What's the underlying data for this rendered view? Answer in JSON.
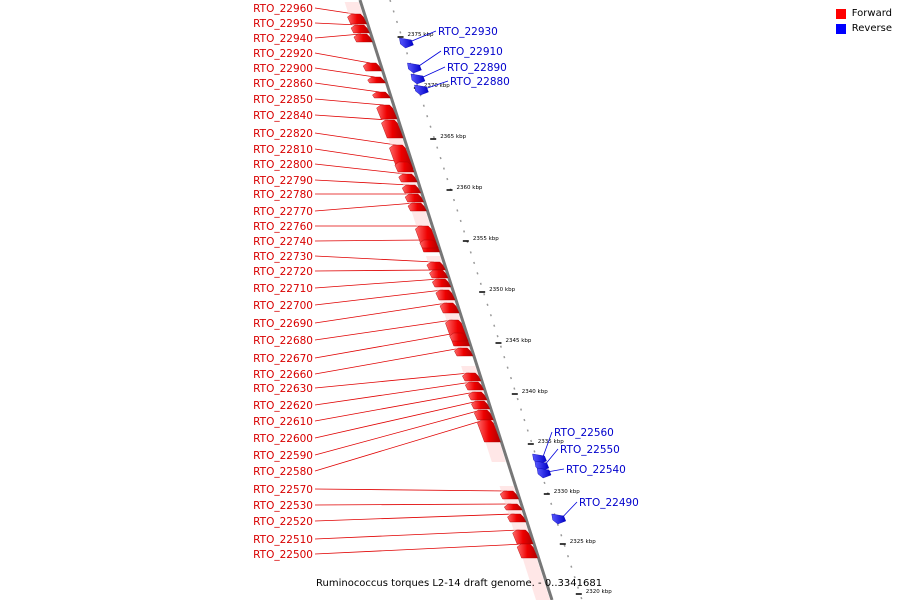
{
  "legend": {
    "forward": {
      "label": "Forward",
      "color": "#ff0000"
    },
    "reverse": {
      "label": "Reverse",
      "color": "#0000ff"
    }
  },
  "caption": "Ruminococcus torques L2-14 draft genome. - 0..3341681",
  "ruler_ticks": [
    "2375 kbp",
    "2370 kbp",
    "2365 kbp",
    "2360 kbp",
    "2355 kbp",
    "2350 kbp",
    "2345 kbp",
    "2340 kbp",
    "2335 kbp",
    "2330 kbp",
    "2325 kbp",
    "2320 kbp"
  ],
  "forward_genes": [
    "RTO_22960",
    "RTO_22950",
    "RTO_22940",
    "RTO_22920",
    "RTO_22900",
    "RTO_22860",
    "RTO_22850",
    "RTO_22840",
    "RTO_22820",
    "RTO_22810",
    "RTO_22800",
    "RTO_22790",
    "RTO_22780",
    "RTO_22770",
    "RTO_22760",
    "RTO_22740",
    "RTO_22730",
    "RTO_22720",
    "RTO_22710",
    "RTO_22700",
    "RTO_22690",
    "RTO_22680",
    "RTO_22670",
    "RTO_22660",
    "RTO_22630",
    "RTO_22620",
    "RTO_22610",
    "RTO_22600",
    "RTO_22590",
    "RTO_22580",
    "RTO_22570",
    "RTO_22530",
    "RTO_22520",
    "RTO_22510",
    "RTO_22500"
  ],
  "reverse_genes": [
    "RTO_22930",
    "RTO_22910",
    "RTO_22890",
    "RTO_22880",
    "RTO_22560",
    "RTO_22550",
    "RTO_22540",
    "RTO_22490"
  ]
}
